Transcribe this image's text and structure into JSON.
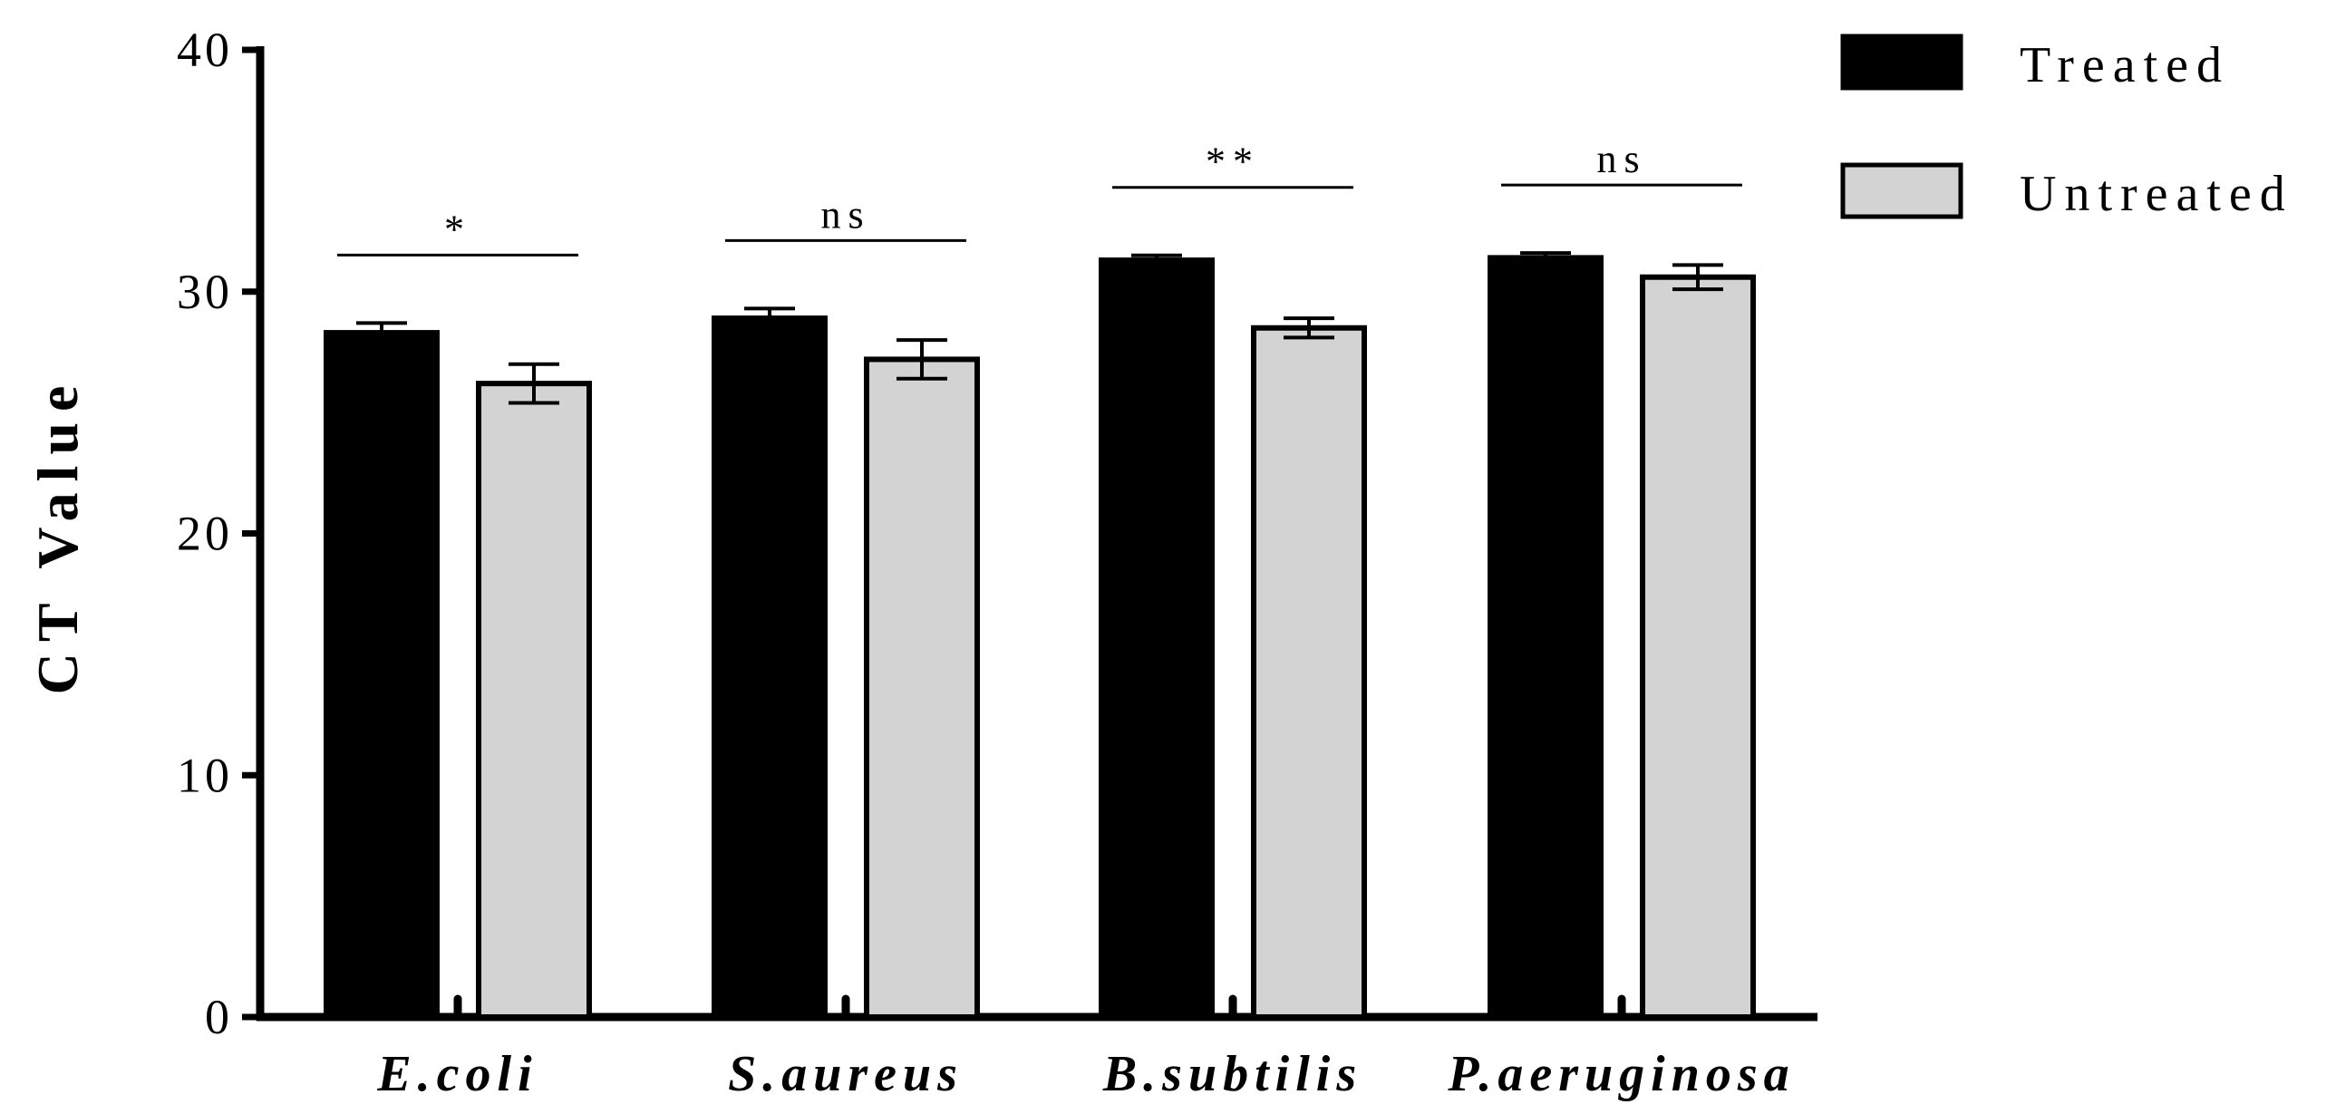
{
  "chart_data": {
    "type": "bar",
    "title": "",
    "xlabel": "",
    "ylabel": "CT Value",
    "ylim": [
      0,
      40
    ],
    "yticks": [
      0,
      10,
      20,
      30,
      40
    ],
    "grid": false,
    "legend_position": "top-right",
    "categories": [
      "E.coli",
      "S.aureus",
      "B.subtilis",
      "P.aeruginosa"
    ],
    "series": [
      {
        "name": "Treated",
        "color": "#000000",
        "values": [
          28.3,
          28.9,
          31.3,
          31.4
        ],
        "errors": [
          0.4,
          0.4,
          0.2,
          0.2
        ]
      },
      {
        "name": "Untreated",
        "color": "#d3d3d3",
        "values": [
          26.2,
          27.2,
          28.5,
          30.6
        ],
        "errors": [
          0.8,
          0.8,
          0.4,
          0.5
        ]
      }
    ],
    "significance": [
      "*",
      "ns",
      "**",
      "ns"
    ]
  }
}
